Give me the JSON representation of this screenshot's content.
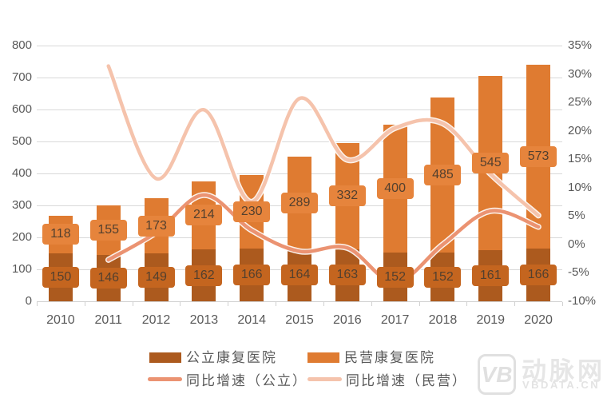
{
  "chart_data": {
    "type": "bar",
    "subtype": "stacked-bars-with-lines-combo",
    "title": "",
    "categories": [
      "2010",
      "2011",
      "2012",
      "2013",
      "2014",
      "2015",
      "2016",
      "2017",
      "2018",
      "2019",
      "2020"
    ],
    "bar_series": [
      {
        "name": "公立康复医院",
        "values": [
          150,
          146,
          149,
          162,
          166,
          164,
          163,
          152,
          152,
          161,
          166
        ],
        "color": "#AC5A1E",
        "label_bg": "#C4651F"
      },
      {
        "name": "民营康复医院",
        "values": [
          118,
          155,
          173,
          214,
          230,
          289,
          332,
          400,
          485,
          545,
          573
        ],
        "color": "#DF7B31",
        "label_bg": "#E6843C"
      }
    ],
    "line_series": [
      {
        "name": "同比增速（公立）",
        "axis": "right",
        "color": "#EB9372",
        "start_index": 1,
        "values": [
          -2.7,
          2.1,
          8.7,
          2.5,
          -1.2,
          -0.6,
          -6.7,
          0.0,
          5.9,
          3.1
        ]
      },
      {
        "name": "同比增速（民营）",
        "axis": "right",
        "color": "#F5C3AC",
        "start_index": 1,
        "values": [
          31.4,
          11.6,
          23.7,
          7.5,
          25.7,
          14.9,
          20.5,
          21.3,
          12.4,
          5.1
        ]
      }
    ],
    "left_axis": {
      "min": 0,
      "max": 800,
      "step": 100,
      "ticks": [
        "800",
        "700",
        "600",
        "500",
        "400",
        "300",
        "200",
        "100",
        "0"
      ]
    },
    "right_axis": {
      "min": -10,
      "max": 35,
      "step": 5,
      "ticks": [
        "35%",
        "30%",
        "25%",
        "20%",
        "15%",
        "10%",
        "5%",
        "0%",
        "-5%",
        "-10%"
      ]
    },
    "grid": true,
    "legend_position": "bottom"
  },
  "watermark": {
    "logo_text": "VB",
    "brand": "动脉网",
    "domain": "VBDATA.CN"
  },
  "colors": {
    "grid": "#D9D9D9",
    "axis_text": "#595959",
    "bar_label_text": "#54402E",
    "legend_text": "#595959",
    "watermark": "#E2E2E2"
  }
}
